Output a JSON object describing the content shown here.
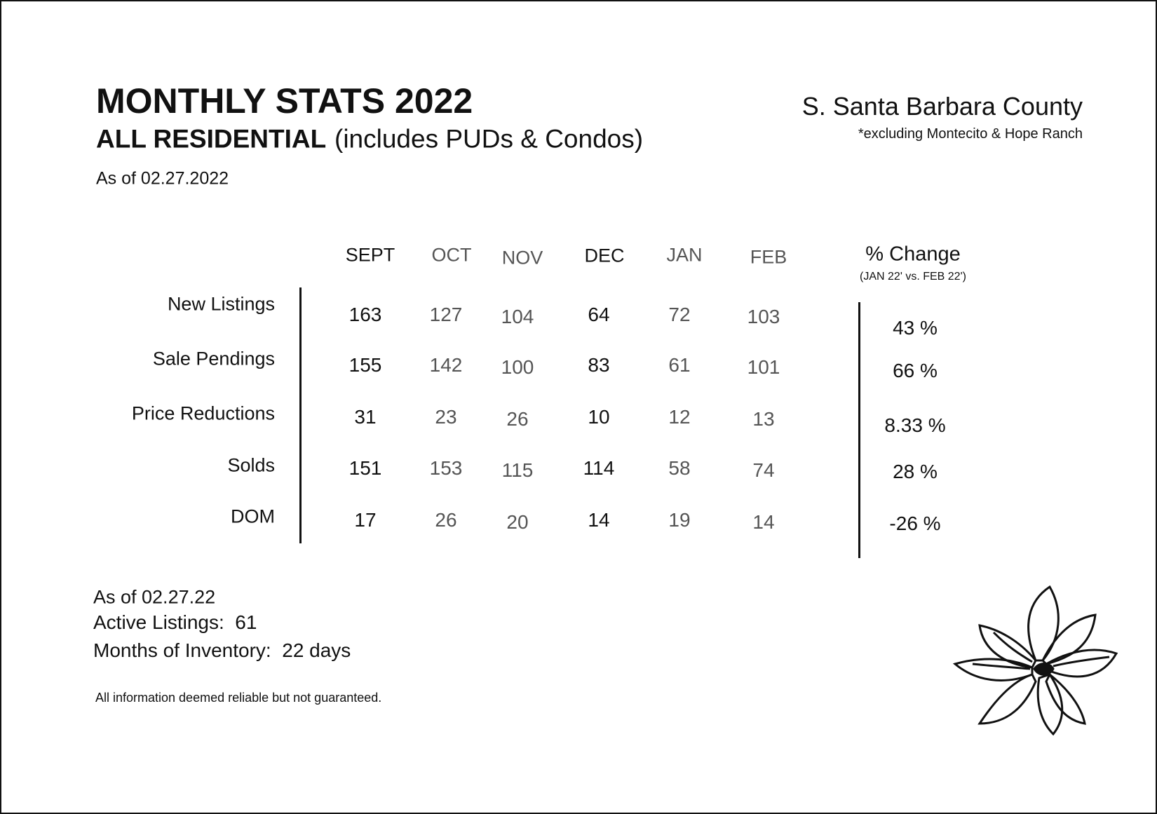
{
  "header": {
    "title": "MONTHLY STATS 2022",
    "subtitle_bold": "ALL RESIDENTIAL",
    "subtitle_rest": "(includes PUDs & Condos)",
    "region": "S. Santa Barbara County",
    "note": "*excluding Montecito & Hope Ranch",
    "as_of": "As of 02.27.2022"
  },
  "table": {
    "columns": [
      "SEPT",
      "OCT",
      "NOV",
      "DEC",
      "JAN",
      "FEB"
    ],
    "change_header": "% Change",
    "change_sub": "(JAN 22' vs. FEB 22')",
    "rows": [
      {
        "label": "New Listings",
        "values": [
          163,
          127,
          104,
          64,
          72,
          103
        ],
        "change": "43 %"
      },
      {
        "label": "Sale Pendings",
        "values": [
          155,
          142,
          100,
          83,
          61,
          101
        ],
        "change": "66 %"
      },
      {
        "label": "Price Reductions",
        "values": [
          31,
          23,
          26,
          10,
          12,
          13
        ],
        "change": "8.33 %"
      },
      {
        "label": "Solds",
        "values": [
          151,
          153,
          115,
          114,
          58,
          74
        ],
        "change": "28 %"
      },
      {
        "label": "DOM",
        "values": [
          17,
          26,
          20,
          14,
          19,
          14
        ],
        "change": "-26 %"
      }
    ]
  },
  "footer": {
    "as_of": "As of 02.27.22",
    "active_listings": "Active Listings:  61",
    "months_inventory": "Months of Inventory:  22 days",
    "disclaimer": "All information deemed reliable but not guaranteed."
  }
}
